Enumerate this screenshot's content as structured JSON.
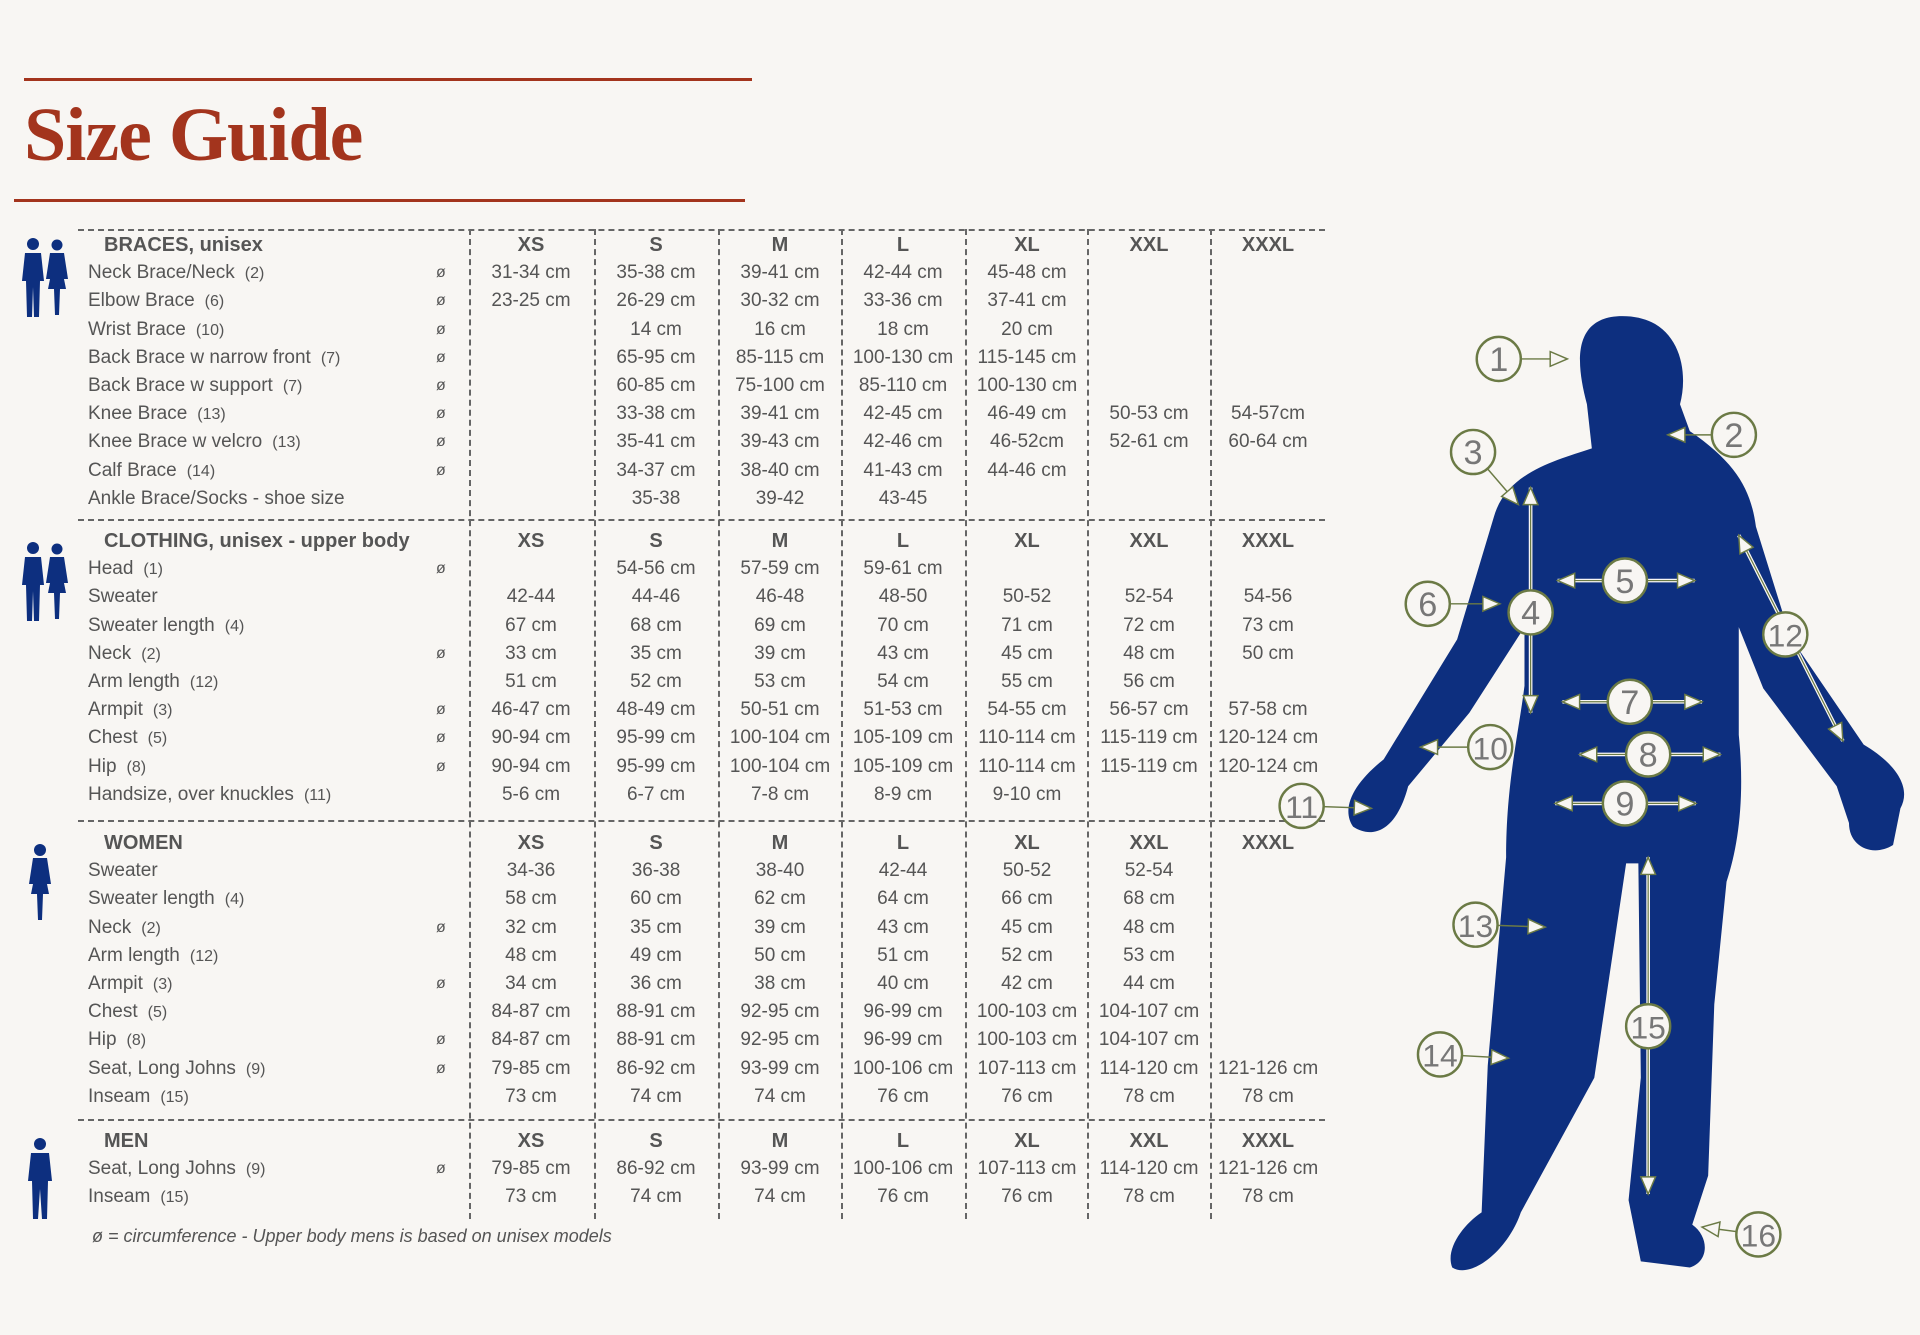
{
  "title": "Size Guide",
  "colors": {
    "title": "#a3341d",
    "silhouette": "#0d2f7f",
    "callout": "#6b7a45",
    "text": "#555555"
  },
  "sizes": [
    "XS",
    "S",
    "M",
    "L",
    "XL",
    "XXL",
    "XXXL"
  ],
  "circumference_symbol": "ø",
  "sections": [
    {
      "header": "BRACES, unisex",
      "icon": "unisex-couple-icon",
      "rows": [
        {
          "label": "Neck Brace/Neck",
          "ref": "(2)",
          "circ": true,
          "values": [
            "31-34 cm",
            "35-38 cm",
            "39-41 cm",
            "42-44 cm",
            "45-48 cm",
            "",
            ""
          ]
        },
        {
          "label": "Elbow Brace",
          "ref": "(6)",
          "circ": true,
          "values": [
            "23-25 cm",
            "26-29 cm",
            "30-32 cm",
            "33-36 cm",
            "37-41 cm",
            "",
            ""
          ]
        },
        {
          "label": "Wrist Brace",
          "ref": "(10)",
          "circ": true,
          "values": [
            "",
            "14 cm",
            "16 cm",
            "18 cm",
            "20 cm",
            "",
            ""
          ]
        },
        {
          "label": "Back Brace w narrow front",
          "ref": "(7)",
          "circ": true,
          "values": [
            "",
            "65-95 cm",
            "85-115 cm",
            "100-130 cm",
            "115-145 cm",
            "",
            ""
          ]
        },
        {
          "label": "Back Brace w support",
          "ref": "(7)",
          "circ": true,
          "values": [
            "",
            "60-85 cm",
            "75-100 cm",
            "85-110 cm",
            "100-130 cm",
            "",
            ""
          ]
        },
        {
          "label": "Knee Brace",
          "ref": "(13)",
          "circ": true,
          "values": [
            "",
            "33-38 cm",
            "39-41 cm",
            "42-45 cm",
            "46-49 cm",
            "50-53 cm",
            "54-57cm"
          ]
        },
        {
          "label": "Knee Brace w velcro",
          "ref": "(13)",
          "circ": true,
          "values": [
            "",
            "35-41 cm",
            "39-43 cm",
            "42-46 cm",
            "46-52cm",
            "52-61 cm",
            "60-64 cm"
          ]
        },
        {
          "label": "Calf Brace",
          "ref": "(14)",
          "circ": true,
          "values": [
            "",
            "34-37 cm",
            "38-40 cm",
            "41-43 cm",
            "44-46 cm",
            "",
            ""
          ]
        },
        {
          "label": "Ankle Brace/Socks - shoe size",
          "ref": "",
          "circ": false,
          "values": [
            "",
            "35-38",
            "39-42",
            "43-45",
            "",
            "",
            ""
          ]
        }
      ]
    },
    {
      "header": "CLOTHING, unisex - upper body",
      "icon": "unisex-couple-icon",
      "rows": [
        {
          "label": "Head",
          "ref": "(1)",
          "circ": true,
          "values": [
            "",
            "54-56 cm",
            "57-59 cm",
            "59-61 cm",
            "",
            "",
            ""
          ]
        },
        {
          "label": "Sweater",
          "ref": "",
          "circ": false,
          "values": [
            "42-44",
            "44-46",
            "46-48",
            "48-50",
            "50-52",
            "52-54",
            "54-56"
          ]
        },
        {
          "label": "Sweater length",
          "ref": "(4)",
          "circ": false,
          "values": [
            "67 cm",
            "68 cm",
            "69 cm",
            "70 cm",
            "71 cm",
            "72 cm",
            "73 cm"
          ]
        },
        {
          "label": "Neck",
          "ref": "(2)",
          "circ": true,
          "values": [
            "33 cm",
            "35 cm",
            "39 cm",
            "43 cm",
            "45 cm",
            "48 cm",
            "50 cm"
          ]
        },
        {
          "label": "Arm length",
          "ref": "(12)",
          "circ": false,
          "values": [
            "51 cm",
            "52 cm",
            "53 cm",
            "54 cm",
            "55 cm",
            "56 cm",
            ""
          ]
        },
        {
          "label": "Armpit",
          "ref": "(3)",
          "circ": true,
          "values": [
            "46-47 cm",
            "48-49 cm",
            "50-51 cm",
            "51-53 cm",
            "54-55 cm",
            "56-57 cm",
            "57-58 cm"
          ]
        },
        {
          "label": "Chest",
          "ref": "(5)",
          "circ": true,
          "values": [
            "90-94 cm",
            "95-99 cm",
            "100-104 cm",
            "105-109 cm",
            "110-114 cm",
            "115-119 cm",
            "120-124 cm"
          ]
        },
        {
          "label": "Hip",
          "ref": "(8)",
          "circ": true,
          "values": [
            "90-94 cm",
            "95-99 cm",
            "100-104 cm",
            "105-109 cm",
            "110-114 cm",
            "115-119 cm",
            "120-124 cm"
          ]
        },
        {
          "label": "Handsize, over knuckles",
          "ref": "(11)",
          "circ": false,
          "values": [
            "5-6 cm",
            "6-7 cm",
            "7-8 cm",
            "8-9 cm",
            "9-10 cm",
            "",
            ""
          ]
        }
      ]
    },
    {
      "header": "WOMEN",
      "icon": "woman-icon",
      "rows": [
        {
          "label": "Sweater",
          "ref": "",
          "circ": false,
          "values": [
            "34-36",
            "36-38",
            "38-40",
            "42-44",
            "50-52",
            "52-54",
            ""
          ]
        },
        {
          "label": "Sweater length",
          "ref": "(4)",
          "circ": false,
          "values": [
            "58 cm",
            "60 cm",
            "62 cm",
            "64 cm",
            "66 cm",
            "68 cm",
            ""
          ]
        },
        {
          "label": "Neck",
          "ref": "(2)",
          "circ": true,
          "values": [
            "32 cm",
            "35 cm",
            "39 cm",
            "43 cm",
            "45 cm",
            "48 cm",
            ""
          ]
        },
        {
          "label": "Arm length",
          "ref": "(12)",
          "circ": false,
          "values": [
            "48 cm",
            "49 cm",
            "50 cm",
            "51 cm",
            "52 cm",
            "53 cm",
            ""
          ]
        },
        {
          "label": "Armpit",
          "ref": "(3)",
          "circ": true,
          "values": [
            "34 cm",
            "36 cm",
            "38 cm",
            "40 cm",
            "42 cm",
            "44 cm",
            ""
          ]
        },
        {
          "label": "Chest",
          "ref": "(5)",
          "circ": false,
          "values": [
            "84-87 cm",
            "88-91 cm",
            "92-95 cm",
            "96-99 cm",
            "100-103 cm",
            "104-107 cm",
            ""
          ]
        },
        {
          "label": "Hip",
          "ref": "(8)",
          "circ": true,
          "values": [
            "84-87 cm",
            "88-91 cm",
            "92-95 cm",
            "96-99 cm",
            "100-103 cm",
            "104-107 cm",
            ""
          ]
        },
        {
          "label": "Seat, Long Johns",
          "ref": "(9)",
          "circ": true,
          "values": [
            "79-85 cm",
            "86-92 cm",
            "93-99 cm",
            "100-106 cm",
            "107-113 cm",
            "114-120 cm",
            "121-126 cm"
          ]
        },
        {
          "label": "Inseam",
          "ref": "(15)",
          "circ": false,
          "values": [
            "73 cm",
            "74 cm",
            "74 cm",
            "76 cm",
            "76 cm",
            "78 cm",
            "78 cm"
          ]
        }
      ]
    },
    {
      "header": "MEN",
      "icon": "man-icon",
      "rows": [
        {
          "label": "Seat, Long Johns",
          "ref": "(9)",
          "circ": true,
          "values": [
            "79-85 cm",
            "86-92 cm",
            "93-99 cm",
            "100-106 cm",
            "107-113 cm",
            "114-120 cm",
            "121-126 cm"
          ]
        },
        {
          "label": "Inseam",
          "ref": "(15)",
          "circ": false,
          "values": [
            "73 cm",
            "74 cm",
            "74 cm",
            "76 cm",
            "76 cm",
            "78 cm",
            "78 cm"
          ]
        }
      ]
    }
  ],
  "footnote": "ø = circumference   -   Upper body mens is based on unisex models",
  "callouts": [
    "1",
    "2",
    "3",
    "4",
    "5",
    "6",
    "7",
    "8",
    "9",
    "10",
    "11",
    "12",
    "13",
    "14",
    "15",
    "16"
  ]
}
